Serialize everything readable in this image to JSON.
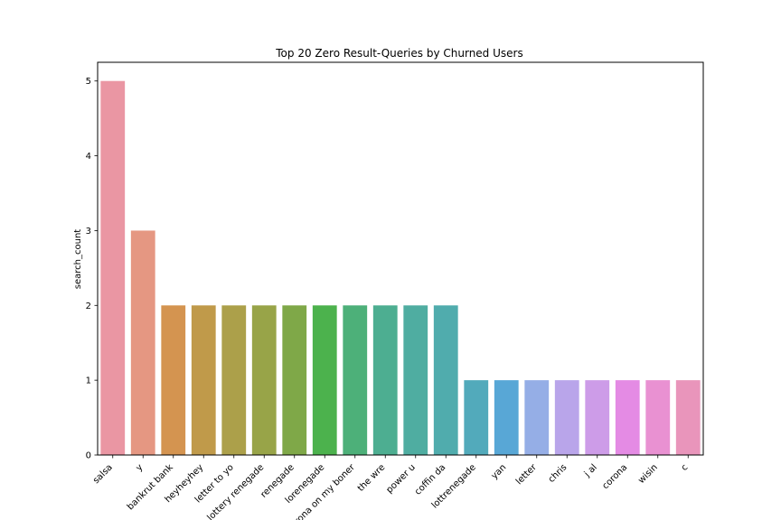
{
  "chart_data": {
    "type": "bar",
    "title": "Top 20 Zero Result-Queries by Churned Users",
    "xlabel": "",
    "ylabel": "search_count",
    "ylim": [
      0,
      5.25
    ],
    "yticks": [
      0,
      1,
      2,
      3,
      4,
      5
    ],
    "grid": false,
    "legend": "none",
    "categories": [
      "salsa",
      "y",
      "bankrut bank",
      "heyheyhey",
      "letter to yo",
      "lottery renegade",
      "renegade",
      "lorenegade",
      "corona on my boner",
      "the wre",
      "power u",
      "coffin da",
      "lottrenegade",
      "yan",
      "letter",
      "chris",
      "j al",
      "corona",
      "wisin",
      "c"
    ],
    "values": [
      5,
      3,
      2,
      2,
      2,
      2,
      2,
      2,
      2,
      2,
      2,
      2,
      1,
      1,
      1,
      1,
      1,
      1,
      1,
      1
    ],
    "colors": [
      "#ea96a3",
      "#e59782",
      "#d49450",
      "#c09a4a",
      "#aca04a",
      "#98a448",
      "#7fa848",
      "#4cb24d",
      "#4db079",
      "#4dae91",
      "#4fada1",
      "#50acad",
      "#52aabb",
      "#58a7d6",
      "#95aee6",
      "#b9a5ea",
      "#cd9ce8",
      "#e48be4",
      "#e991d2",
      "#e995bb"
    ]
  }
}
